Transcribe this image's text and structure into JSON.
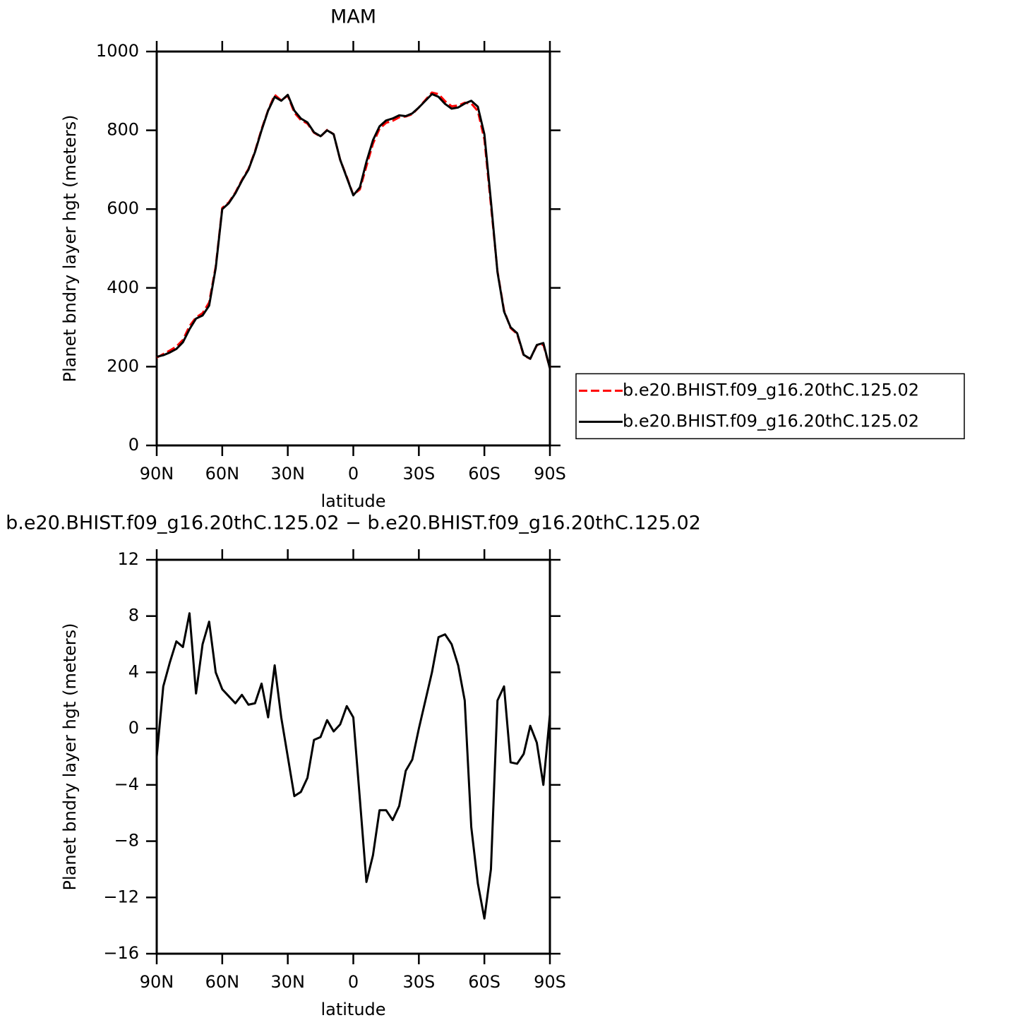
{
  "chart_data": [
    {
      "type": "line",
      "title": "MAM",
      "xlabel": "latitude",
      "ylabel": "Planet bndry layer hgt (meters)",
      "x": [
        90,
        87,
        84,
        81,
        78,
        75,
        72,
        69,
        66,
        63,
        60,
        57,
        54,
        51,
        48,
        45,
        42,
        39,
        36,
        33,
        30,
        27,
        24,
        21,
        18,
        15,
        12,
        9,
        6,
        3,
        0,
        -3,
        -6,
        -9,
        -12,
        -15,
        -18,
        -21,
        -24,
        -27,
        -30,
        -33,
        -36,
        -39,
        -42,
        -45,
        -48,
        -51,
        -54,
        -57,
        -60,
        -63,
        -66,
        -69,
        -72,
        -75,
        -78,
        -81,
        -84,
        -87,
        -90
      ],
      "series": [
        {
          "name": "b.e20.BHIST.f09_g16.20thC.125.02",
          "color": "#ff0000",
          "line_style": "dashed",
          "values": [
            223,
            232,
            241,
            251,
            268,
            303,
            325,
            336,
            363,
            454,
            603,
            617,
            642,
            674,
            702,
            747,
            803,
            851,
            890,
            876,
            888,
            845,
            826,
            817,
            794,
            784,
            801,
            790,
            725,
            682,
            636,
            650,
            709,
            766,
            804,
            819,
            824,
            833,
            835,
            841,
            858,
            877,
            896,
            892,
            874,
            861,
            863,
            870,
            868,
            849,
            777,
            610,
            442,
            343,
            298,
            283,
            228,
            220,
            254,
            256,
            196
          ]
        },
        {
          "name": "b.e20.BHIST.f09_g16.20thC.125.02",
          "color": "#000000",
          "line_style": "solid",
          "values": [
            225,
            229,
            236,
            245,
            262,
            295,
            322,
            330,
            355,
            450,
            600,
            615,
            640,
            672,
            700,
            745,
            800,
            850,
            885,
            875,
            890,
            850,
            830,
            820,
            795,
            785,
            800,
            790,
            725,
            680,
            635,
            655,
            720,
            775,
            810,
            825,
            830,
            838,
            836,
            843,
            858,
            875,
            892,
            885,
            867,
            855,
            858,
            868,
            875,
            860,
            790,
            620,
            440,
            340,
            300,
            285,
            230,
            220,
            255,
            260,
            195
          ]
        }
      ],
      "xlim": [
        90,
        -90
      ],
      "xticks": [
        {
          "value": 90,
          "label": "90N"
        },
        {
          "value": 60,
          "label": "60N"
        },
        {
          "value": 30,
          "label": "30N"
        },
        0,
        {
          "value": -30,
          "label": "30S"
        },
        {
          "value": -60,
          "label": "60S"
        },
        {
          "value": -90,
          "label": "90S"
        }
      ],
      "ylim": [
        0,
        1000
      ],
      "yticks": [
        0,
        200,
        400,
        600,
        800,
        1000
      ],
      "legend": "right"
    },
    {
      "type": "line",
      "title": "b.e20.BHIST.f09_g16.20thC.125.02 − b.e20.BHIST.f09_g16.20thC.125.02",
      "xlabel": "latitude",
      "ylabel": "Planet bndry layer hgt (meters)",
      "x": [
        90,
        87,
        84,
        81,
        78,
        75,
        72,
        69,
        66,
        63,
        60,
        57,
        54,
        51,
        48,
        45,
        42,
        39,
        36,
        33,
        30,
        27,
        24,
        21,
        18,
        15,
        12,
        9,
        6,
        3,
        0,
        -3,
        -6,
        -9,
        -12,
        -15,
        -18,
        -21,
        -24,
        -27,
        -30,
        -33,
        -36,
        -39,
        -42,
        -45,
        -48,
        -51,
        -54,
        -57,
        -60,
        -63,
        -66,
        -69,
        -72,
        -75,
        -78,
        -81,
        -84,
        -87,
        -90
      ],
      "series": [
        {
          "color": "#000000",
          "line_style": "solid",
          "values": [
            -2,
            3,
            4.7,
            6.2,
            5.8,
            8.2,
            2.5,
            6,
            7.6,
            4,
            2.8,
            2.3,
            1.8,
            2.4,
            1.7,
            1.8,
            3.2,
            0.8,
            4.5,
            0.8,
            -2,
            -4.8,
            -4.5,
            -3.5,
            -0.8,
            -0.6,
            0.6,
            -0.2,
            0.3,
            1.6,
            0.8,
            -5,
            -10.9,
            -9,
            -5.8,
            -5.8,
            -6.5,
            -5.5,
            -3,
            -2.2,
            0,
            2,
            4,
            6.5,
            6.7,
            6,
            4.5,
            2,
            -7,
            -11,
            -13.5,
            -10,
            2,
            3,
            -2.4,
            -2.5,
            -1.8,
            0.2,
            -1,
            -4,
            1
          ]
        }
      ],
      "xlim": [
        90,
        -90
      ],
      "xticks": [
        {
          "value": 90,
          "label": "90N"
        },
        {
          "value": 60,
          "label": "60N"
        },
        {
          "value": 30,
          "label": "30N"
        },
        0,
        {
          "value": -30,
          "label": "30S"
        },
        {
          "value": -60,
          "label": "60S"
        },
        {
          "value": -90,
          "label": "90S"
        }
      ],
      "ylim": [
        -16,
        12
      ],
      "yticks": [
        {
          "value": -16,
          "label": "−16"
        },
        {
          "value": -12,
          "label": "−12"
        },
        {
          "value": -8,
          "label": "−8"
        },
        {
          "value": -4,
          "label": "−4"
        },
        0,
        4,
        8,
        12
      ]
    }
  ]
}
